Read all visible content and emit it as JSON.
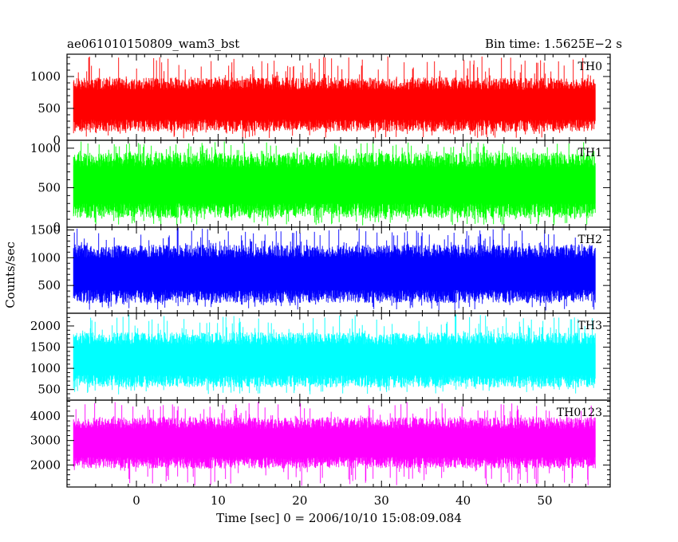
{
  "header": {
    "title": "ae061010150809_wam3_bst",
    "bin_time": "Bin time: 1.5625E−2 s"
  },
  "chart_data": {
    "type": "line",
    "title": "ae061010150809_wam3_bst",
    "subtitle": "Bin time: 1.5625E−2 s",
    "xlabel": "Time [sec] 0 = 2006/10/10 15:08:09.084",
    "ylabel": "Counts/sec",
    "xlim": [
      -8.5,
      58
    ],
    "data_x_range": [
      -7.7,
      56.2
    ],
    "x_ticks": [
      0,
      10,
      20,
      30,
      40,
      50
    ],
    "x_tick_labels": [
      "0",
      "10",
      "20",
      "30",
      "40",
      "50"
    ],
    "panels": [
      {
        "name": "TH0",
        "color": "#ff0000",
        "ylim": [
          0,
          1350
        ],
        "y_ticks": [
          0,
          500,
          1000
        ],
        "y_tick_labels": [
          "0",
          "500",
          "1000"
        ],
        "baseline": 560,
        "upper_envelope": 1000,
        "lower_envelope": 150,
        "spike_max": 1320,
        "spike_min": 30
      },
      {
        "name": "TH1",
        "color": "#00ff00",
        "ylim": [
          0,
          1100
        ],
        "y_ticks": [
          0,
          500,
          1000
        ],
        "y_tick_labels": [
          "0",
          "500",
          "1000"
        ],
        "baseline": 530,
        "upper_envelope": 950,
        "lower_envelope": 120,
        "spike_max": 1090,
        "spike_min": 20
      },
      {
        "name": "TH2",
        "color": "#0000ff",
        "ylim": [
          0,
          1550
        ],
        "y_ticks": [
          500,
          1000,
          1500
        ],
        "y_tick_labels": [
          "500",
          "1000",
          "1500"
        ],
        "baseline": 710,
        "upper_envelope": 1250,
        "lower_envelope": 200,
        "spike_max": 1540,
        "spike_min": 50
      },
      {
        "name": "TH3",
        "color": "#00ffff",
        "ylim": [
          250,
          2300
        ],
        "y_ticks": [
          500,
          1000,
          1500,
          2000
        ],
        "y_tick_labels": [
          "500",
          "1000",
          "1500",
          "2000"
        ],
        "baseline": 1200,
        "upper_envelope": 1900,
        "lower_envelope": 600,
        "spike_max": 2280,
        "spike_min": 380
      },
      {
        "name": "TH0123",
        "color": "#ff00ff",
        "ylim": [
          1100,
          4650
        ],
        "y_ticks": [
          2000,
          3000,
          4000
        ],
        "y_tick_labels": [
          "2000",
          "3000",
          "4000"
        ],
        "baseline": 2900,
        "upper_envelope": 3900,
        "lower_envelope": 1800,
        "spike_max": 4600,
        "spike_min": 1150
      }
    ],
    "grid": false,
    "legend": "none"
  }
}
